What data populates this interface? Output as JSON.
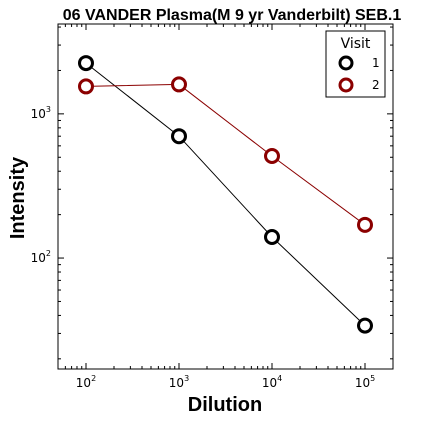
{
  "chart_data": {
    "type": "line",
    "title": "06 VANDER Plasma(M 9 yr Vanderbilt) SEB.1",
    "xlabel": "Dilution",
    "ylabel": "Intensity",
    "x_scale": "log",
    "y_scale": "log",
    "xlim": [
      50,
      200000
    ],
    "ylim": [
      17,
      4200
    ],
    "x": [
      100,
      1000,
      10000,
      100000
    ],
    "x_ticks": [
      100,
      1000,
      10000,
      100000
    ],
    "x_tick_labels": [
      {
        "base": "10",
        "exp": "2"
      },
      {
        "base": "10",
        "exp": "3"
      },
      {
        "base": "10",
        "exp": "4"
      },
      {
        "base": "10",
        "exp": "5"
      }
    ],
    "y_ticks": [
      100,
      1000
    ],
    "y_tick_labels": [
      {
        "base": "10",
        "exp": "2"
      },
      {
        "base": "10",
        "exp": "3"
      }
    ],
    "legend": {
      "title": "Visit",
      "position": "top-right"
    },
    "series": [
      {
        "name": "1",
        "color": "#000000",
        "values": [
          2250,
          700,
          140,
          34
        ]
      },
      {
        "name": "2",
        "color": "#8b0000",
        "values": [
          1550,
          1600,
          510,
          170
        ]
      }
    ],
    "grid": false,
    "marker": "hollow-circle"
  }
}
